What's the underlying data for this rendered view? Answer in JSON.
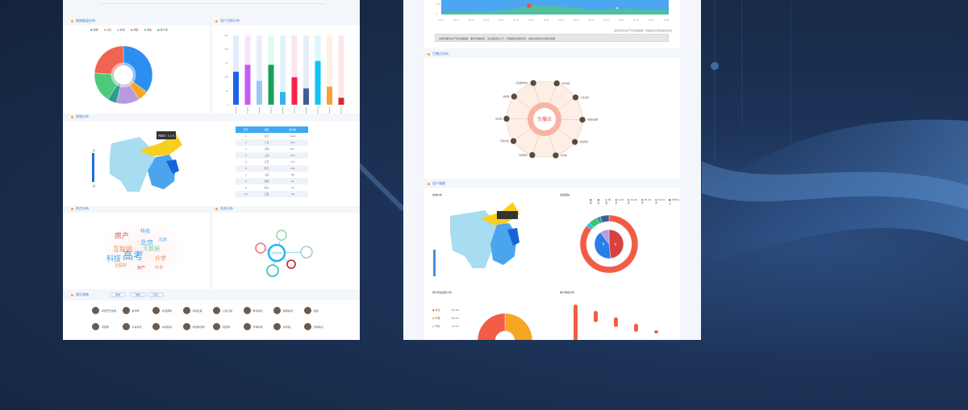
{
  "colors": {
    "background": "#172a47",
    "accent": "#3a7bd5",
    "section_dot": "#f5a623"
  },
  "left": {
    "sections": {
      "donut": "微博渠道分布",
      "bars": "用户活跃分布",
      "map": "地域分布",
      "hot": "热点分析",
      "relation": "关系分析",
      "leaders": "意见领袖"
    },
    "donut": {
      "legend": [
        "微博",
        "论坛",
        "新闻",
        "博客",
        "微信",
        "客户端"
      ],
      "slices": [
        {
          "value": 35,
          "color": "#2b8ef0"
        },
        {
          "value": 6,
          "color": "#f5a623"
        },
        {
          "value": 13,
          "color": "#b79be0"
        },
        {
          "value": 5,
          "color": "#2f9c94"
        },
        {
          "value": 17,
          "color": "#4dc97a"
        },
        {
          "value": 24,
          "color": "#f16352"
        }
      ]
    },
    "bars": {
      "yticks": [
        "0",
        "50",
        "100",
        "150",
        "200",
        "250"
      ],
      "ymax": 250,
      "values": [
        119,
        144,
        86,
        144,
        46,
        99,
        59,
        158,
        65,
        25
      ],
      "colors": [
        "#1e63e9",
        "#c55cf0",
        "#9cc4f5",
        "#16a15a",
        "#36b3f0",
        "#f5224a",
        "#3c5f94",
        "#10c3f5",
        "#f7a13a",
        "#d9272e"
      ],
      "bgcolors": [
        "#e3edfd",
        "#f6e6fd",
        "#e8effa",
        "#e2f8f0",
        "#e0f3fd",
        "#fde6ee",
        "#e7edf5",
        "#def7fd",
        "#fef0e3",
        "#fde7e7"
      ]
    },
    "map": {
      "tooltip": "内蒙古 : 5,131",
      "legend_high": "高",
      "legend_low": "低"
    },
    "table": {
      "headers": [
        "序号",
        "地区",
        "用户数"
      ],
      "rows": [
        [
          "1",
          "北京",
          "1494"
        ],
        [
          "2",
          "广东",
          "979"
        ],
        [
          "3",
          "河南",
          "817"
        ],
        [
          "4",
          "上海",
          "276"
        ],
        [
          "5",
          "江苏",
          "175"
        ],
        [
          "6",
          "浙江",
          "155"
        ],
        [
          "7",
          "山东",
          "99"
        ],
        [
          "8",
          "湖南",
          "61"
        ],
        [
          "9",
          "四川",
          "76"
        ],
        [
          "10",
          "江西",
          "48"
        ]
      ]
    },
    "wordcloud": [
      {
        "t": "高考",
        "c": "#3aa0f0",
        "s": 13
      },
      {
        "t": "科技",
        "c": "#3aa0f0",
        "s": 9
      },
      {
        "t": "房产",
        "c": "#d9534f",
        "s": 9
      },
      {
        "t": "北京",
        "c": "#3aa0f0",
        "s": 8
      },
      {
        "t": "互联网",
        "c": "#f08a5d",
        "s": 8
      },
      {
        "t": "大数据",
        "c": "#7ed3a5",
        "s": 7
      },
      {
        "t": "升学",
        "c": "#f08a5d",
        "s": 7
      },
      {
        "t": "科技",
        "c": "#3aa0f0",
        "s": 6
      },
      {
        "t": "房产",
        "c": "#d9534f",
        "s": 5
      },
      {
        "t": "升学",
        "c": "#f08a5d",
        "s": 5
      },
      {
        "t": "北京",
        "c": "#3aa0f0",
        "s": 5
      },
      {
        "t": "互联网",
        "c": "#f08a5d",
        "s": 5
      }
    ],
    "network": {
      "center": "北京高考"
    },
    "leader_tabs": [
      "微博",
      "微信",
      "论坛"
    ],
    "users": [
      "阿里巴巴中国",
      "新华网",
      "新浪博客",
      "中国日报",
      "人民日报",
      "腾讯新闻",
      "网易新闻",
      "搜狐",
      "凤凰网",
      "头条新闻",
      "央视新闻",
      "中国新闻网",
      "财经网",
      "环球时报",
      "新京报",
      "澎湃新闻"
    ]
  },
  "right": {
    "area": {
      "yticks": [
        "0",
        "100"
      ],
      "xticks": [
        "05-13",
        "05-14",
        "05-15",
        "05-16",
        "05-17",
        "05-18",
        "05-19",
        "05-20",
        "05-21",
        "05-22",
        "05-23",
        "05-24",
        "05-25",
        "05-26",
        "05-27",
        "05-28"
      ]
    },
    "note": "该时间段内共产生传播数据，传播峰值出现在相关时段",
    "summary": "监测周期内共产生传播数据，事件传播峰值，关注度持续上升，传播趋势逐渐平稳，后续将持续关注事件发展",
    "sections": {
      "burst": "引爆点分析",
      "portrait": "用户画像"
    },
    "burst": {
      "center": "引爆点",
      "nodes": [
        "新浪微博用户",
        "头条新闻",
        "人民日报",
        "中国新闻网",
        "央视新闻",
        "新华网",
        "澎湃新闻",
        "环球时报",
        "新京报",
        "财经网"
      ]
    },
    "portrait": {
      "map_title": "地域分布",
      "gender_title": "性别结构",
      "legend": [
        "男",
        "女",
        "未知",
        "0-18岁",
        "19-24岁",
        "25-34岁",
        "35-44岁",
        "45岁以上"
      ],
      "inner": [
        {
          "value": 48,
          "color": "#d94141",
          "label": "女"
        },
        {
          "value": 42,
          "color": "#2b7de9",
          "label": "男"
        },
        {
          "value": 10,
          "color": "#b79be0",
          "label": ""
        }
      ],
      "outer": [
        {
          "value": 86,
          "color": "#f25c46"
        },
        {
          "value": 2,
          "color": "#1ec3f0"
        },
        {
          "value": 5,
          "color": "#41c26a"
        },
        {
          "value": 2,
          "color": "#2f9c94"
        },
        {
          "value": 5,
          "color": "#3c5f94"
        }
      ],
      "region_title": "用户所在地区分布",
      "rows": [
        [
          "华东",
          "47.4%"
        ],
        [
          "华南",
          "24.2%"
        ],
        [
          "华北",
          "11.1%"
        ]
      ],
      "level_title": "用户等级分布",
      "level_values": [
        300,
        280,
        240,
        200,
        60
      ]
    }
  }
}
